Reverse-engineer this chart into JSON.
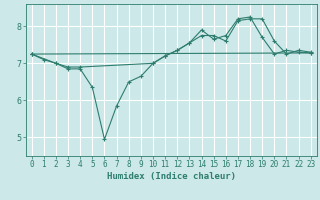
{
  "xlabel": "Humidex (Indice chaleur)",
  "ylabel": "",
  "background_color": "#cce8e8",
  "grid_color": "#ffffff",
  "line_color": "#2e7d6e",
  "xlim": [
    -0.5,
    23.5
  ],
  "ylim": [
    4.5,
    8.6
  ],
  "xticks": [
    0,
    1,
    2,
    3,
    4,
    5,
    6,
    7,
    8,
    9,
    10,
    11,
    12,
    13,
    14,
    15,
    16,
    17,
    18,
    19,
    20,
    21,
    22,
    23
  ],
  "yticks": [
    5,
    6,
    7,
    8
  ],
  "series": [
    {
      "x": [
        0,
        1,
        2,
        3,
        4,
        10,
        11,
        12,
        13,
        14,
        15,
        16,
        17,
        18,
        19,
        20,
        21,
        22,
        23
      ],
      "y": [
        7.25,
        7.1,
        7.0,
        6.9,
        6.9,
        7.0,
        7.2,
        7.35,
        7.55,
        7.75,
        7.75,
        7.6,
        8.15,
        8.2,
        8.2,
        7.6,
        7.25,
        7.35,
        7.3
      ]
    },
    {
      "x": [
        0,
        2,
        3,
        4,
        5,
        6,
        7,
        8,
        9,
        10,
        11,
        12,
        13,
        14,
        15,
        16,
        17,
        18,
        19,
        20,
        21,
        22,
        23
      ],
      "y": [
        7.25,
        7.0,
        6.85,
        6.85,
        6.35,
        4.95,
        5.85,
        6.5,
        6.65,
        7.0,
        7.2,
        7.35,
        7.55,
        7.9,
        7.65,
        7.75,
        8.2,
        8.25,
        7.7,
        7.25,
        7.35,
        7.3,
        7.28
      ]
    },
    {
      "x": [
        0,
        23
      ],
      "y": [
        7.25,
        7.28
      ]
    }
  ]
}
